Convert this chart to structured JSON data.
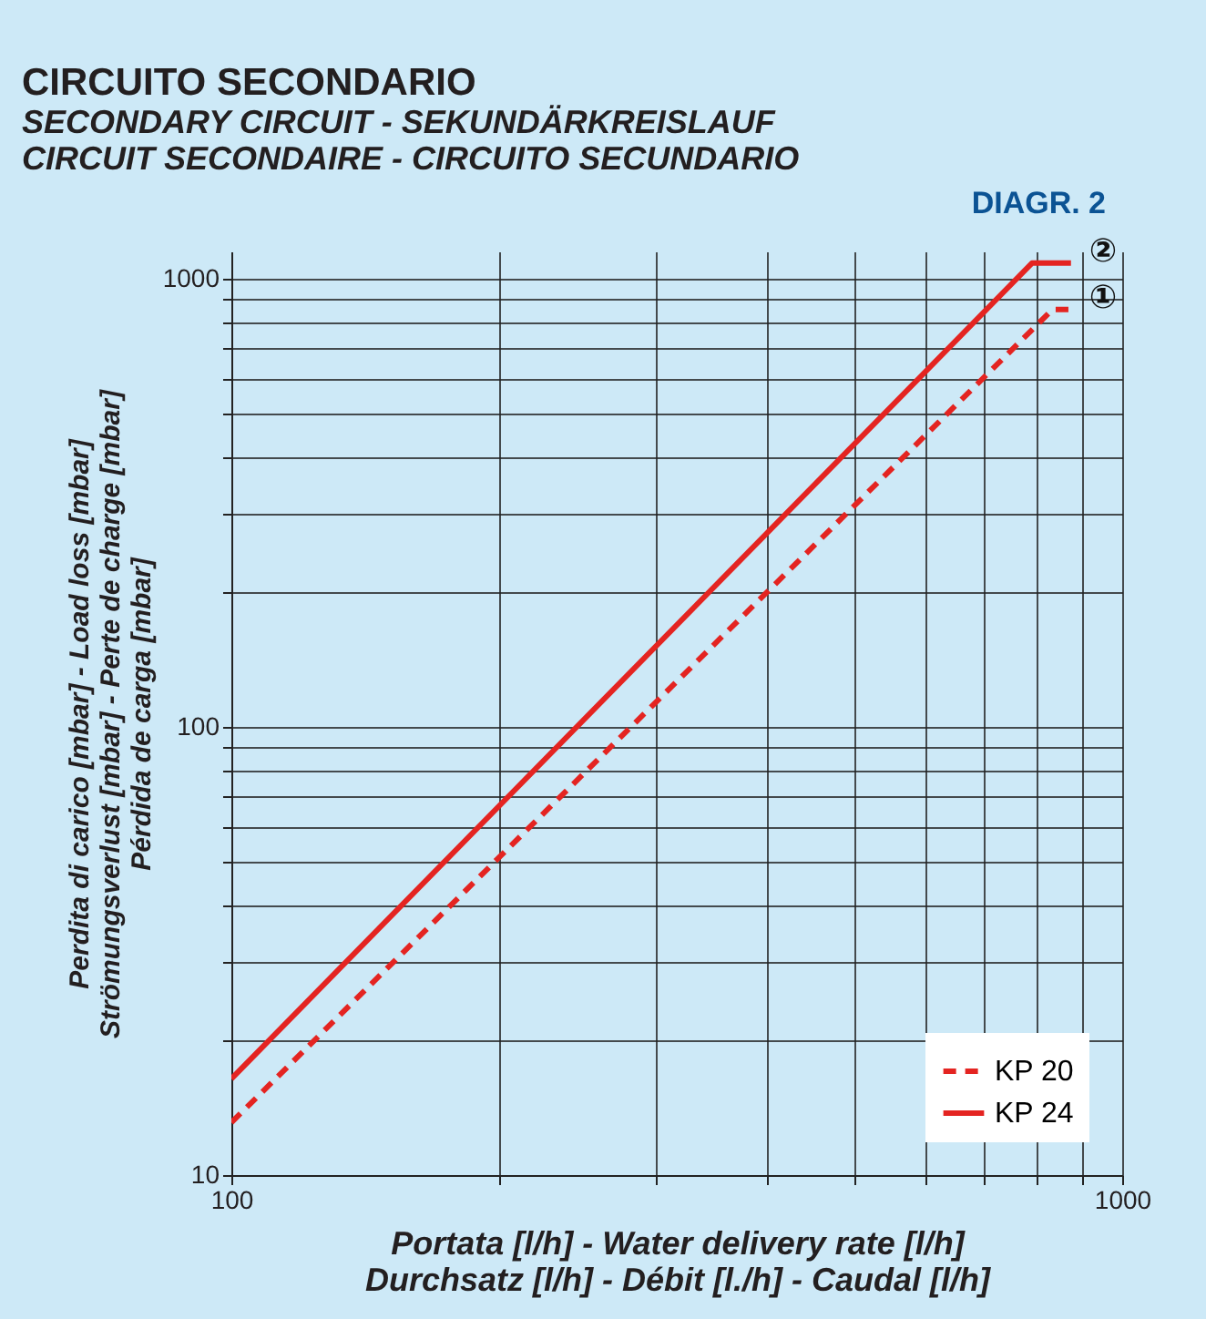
{
  "chart_data": {
    "type": "line",
    "title": "CIRCUITO SECONDARIO",
    "subtitle": "SECONDARY CIRCUIT - SEKUNDÄRKREISLAUF\nCIRCUIT SECONDAIRE - CIRCUITO SECUNDARIO",
    "xlabel": "Portata [l/h] - Water delivery rate [l/h]\nDurchsatz [l/h] - Débit [l./h] - Caudal [l/h]",
    "ylabel": "Perdita di carico [mbar] - Load loss [mbar]\nStrömungsverlust [mbar] - Perte de charge [mbar]\nPérdida de carga [mbar]",
    "series": [
      {
        "name": "KP 20",
        "color": "#e42421",
        "line_style": "dashed",
        "x": [
          100,
          835,
          876
        ],
        "values": [
          13.1,
          853,
          853
        ]
      },
      {
        "name": "KP 24",
        "color": "#e42421",
        "line_style": "solid",
        "x": [
          100,
          792,
          876
        ],
        "values": [
          16.4,
          1083,
          1083
        ]
      }
    ],
    "log": "xy",
    "grid": true,
    "legend": "bottom right",
    "xlim": [
      100,
      1000
    ],
    "ylim": [
      10,
      1150
    ],
    "xticks": [
      100,
      {
        "value": 200,
        "label": null
      },
      {
        "value": 300,
        "label": null
      },
      {
        "value": 400,
        "label": null
      },
      {
        "value": 500,
        "label": null
      },
      {
        "value": 600,
        "label": null
      },
      {
        "value": 700,
        "label": null
      },
      {
        "value": 800,
        "label": null
      },
      {
        "value": 900,
        "label": null
      },
      1000
    ],
    "yticks": [
      10,
      {
        "value": 20,
        "label": null
      },
      {
        "value": 30,
        "label": null
      },
      {
        "value": 40,
        "label": null
      },
      {
        "value": 50,
        "label": null
      },
      {
        "value": 60,
        "label": null
      },
      {
        "value": 70,
        "label": null
      },
      {
        "value": 80,
        "label": null
      },
      {
        "value": 90,
        "label": null
      },
      100,
      {
        "value": 200,
        "label": null
      },
      {
        "value": 300,
        "label": null
      },
      {
        "value": 400,
        "label": null
      },
      {
        "value": 500,
        "label": null
      },
      {
        "value": 600,
        "label": null
      },
      {
        "value": 700,
        "label": null
      },
      {
        "value": 800,
        "label": null
      },
      {
        "value": 900,
        "label": null
      },
      1000
    ],
    "annotations": [
      "DIAGR. 2",
      {
        "text": "②",
        "x": 876,
        "y": 1083
      },
      {
        "text": "①",
        "x": 876,
        "y": 853
      }
    ]
  }
}
